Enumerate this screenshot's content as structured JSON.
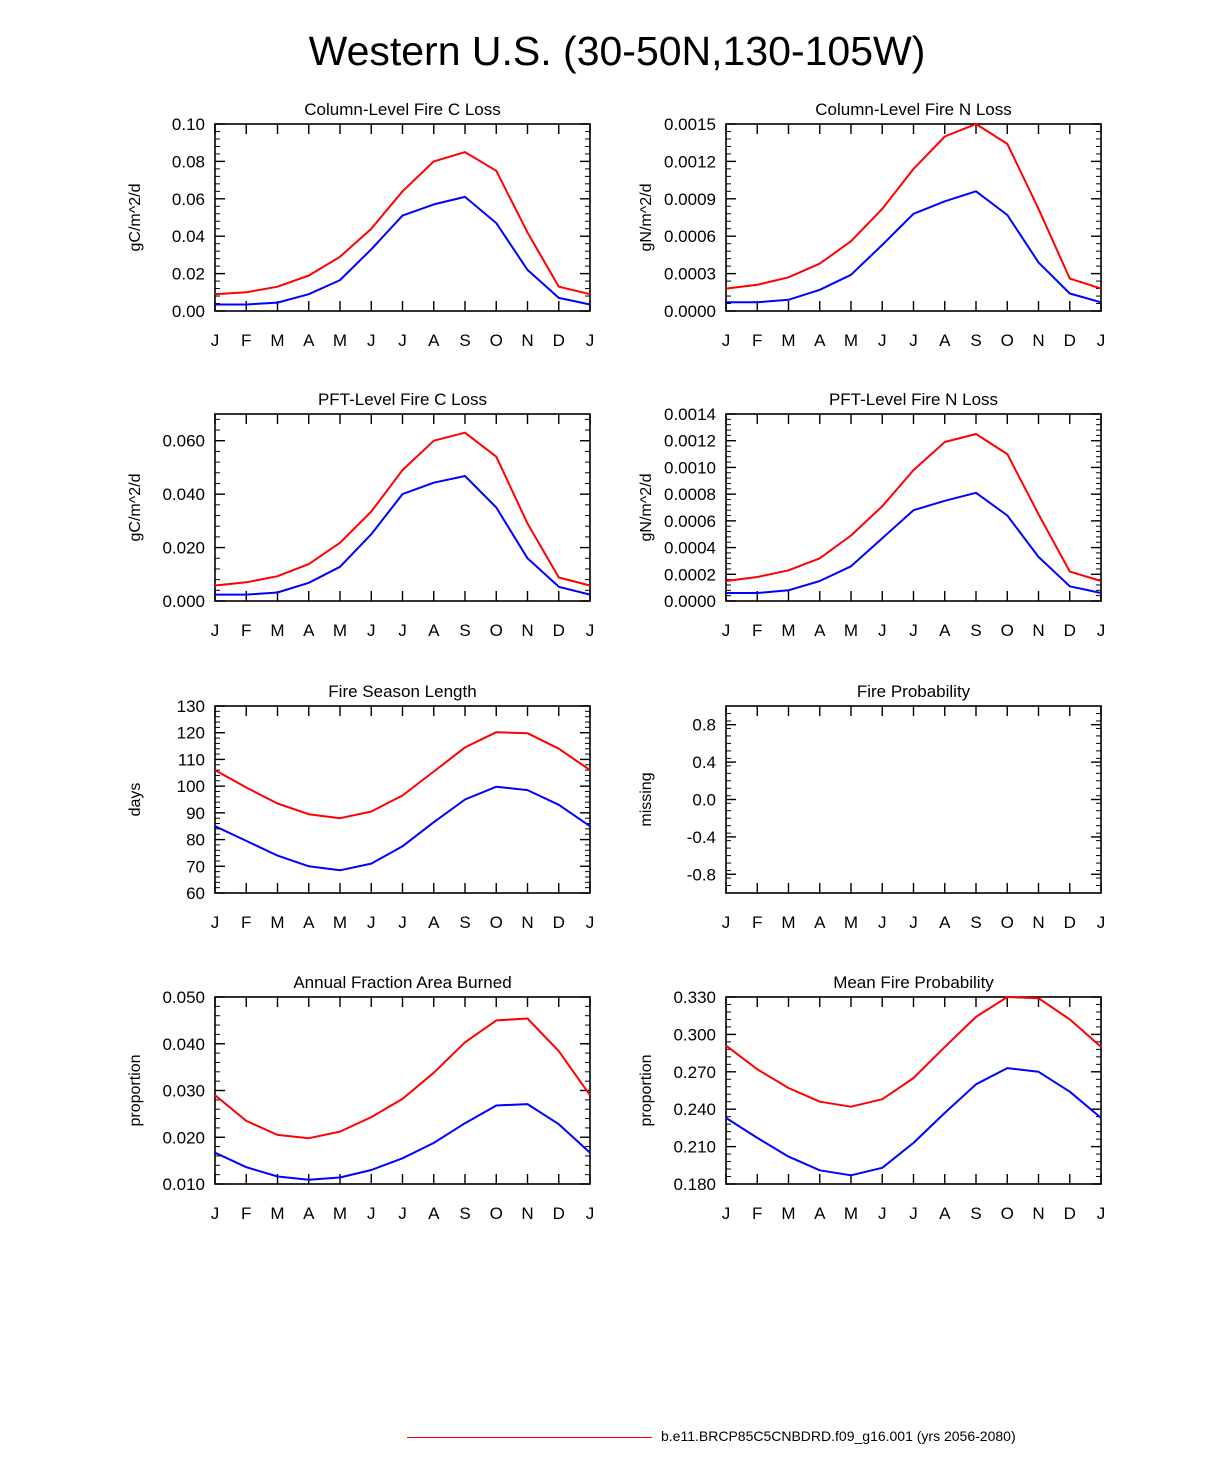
{
  "title": "Western U.S. (30-50N,130-105W)",
  "colors": {
    "series_a": "#ff0000",
    "series_b": "#0000ff",
    "axis": "#000000"
  },
  "legend": {
    "label": "b.e11.BRCP85C5CNBDRD.f09_g16.001 (yrs 2056-2080)",
    "color": "#ff0000"
  },
  "chart_data": [
    {
      "type": "line",
      "title": "Column-Level Fire C Loss",
      "ylabel": "gC/m^2/d",
      "categories": [
        "J",
        "F",
        "M",
        "A",
        "M",
        "J",
        "J",
        "A",
        "S",
        "O",
        "N",
        "D",
        "J"
      ],
      "ylim": [
        0,
        0.1
      ],
      "yticks": [
        "0.00",
        "0.02",
        "0.04",
        "0.06",
        "0.08",
        "0.10"
      ],
      "series": [
        {
          "name": "red",
          "color": "#ff0000",
          "values": [
            0.009,
            0.01,
            0.013,
            0.019,
            0.029,
            0.044,
            0.064,
            0.08,
            0.085,
            0.075,
            0.042,
            0.013,
            0.009
          ]
        },
        {
          "name": "blue",
          "color": "#0000ff",
          "values": [
            0.0035,
            0.0035,
            0.0045,
            0.009,
            0.0165,
            0.033,
            0.051,
            0.057,
            0.061,
            0.047,
            0.022,
            0.007,
            0.0035
          ]
        }
      ]
    },
    {
      "type": "line",
      "title": "Column-Level Fire N Loss",
      "ylabel": "gN/m^2/d",
      "categories": [
        "J",
        "F",
        "M",
        "A",
        "M",
        "J",
        "J",
        "A",
        "S",
        "O",
        "N",
        "D",
        "J"
      ],
      "ylim": [
        0,
        0.0015
      ],
      "yticks": [
        "0.0000",
        "0.0003",
        "0.0006",
        "0.0009",
        "0.0012",
        "0.0015"
      ],
      "series": [
        {
          "name": "red",
          "color": "#ff0000",
          "values": [
            0.00018,
            0.00021,
            0.00027,
            0.00038,
            0.00056,
            0.00082,
            0.00114,
            0.0014,
            0.0015,
            0.00134,
            0.00082,
            0.00026,
            0.00018
          ]
        },
        {
          "name": "blue",
          "color": "#0000ff",
          "values": [
            7e-05,
            7e-05,
            9e-05,
            0.00017,
            0.00029,
            0.00053,
            0.00078,
            0.00088,
            0.00096,
            0.00077,
            0.00039,
            0.00014,
            7e-05
          ]
        }
      ]
    },
    {
      "type": "line",
      "title": "PFT-Level Fire C Loss",
      "ylabel": "gC/m^2/d",
      "categories": [
        "J",
        "F",
        "M",
        "A",
        "M",
        "J",
        "J",
        "A",
        "S",
        "O",
        "N",
        "D",
        "J"
      ],
      "ylim": [
        0,
        0.07
      ],
      "yticks": [
        "0.000",
        "0.020",
        "0.040",
        "0.060"
      ],
      "ytick_values": [
        0,
        0.02,
        0.04,
        0.06
      ],
      "series": [
        {
          "name": "red",
          "color": "#ff0000",
          "values": [
            0.0058,
            0.007,
            0.0093,
            0.0138,
            0.0218,
            0.0335,
            0.049,
            0.06,
            0.063,
            0.054,
            0.029,
            0.0088,
            0.0058
          ]
        },
        {
          "name": "blue",
          "color": "#0000ff",
          "values": [
            0.0024,
            0.0024,
            0.0032,
            0.0068,
            0.0128,
            0.025,
            0.04,
            0.0443,
            0.0468,
            0.035,
            0.016,
            0.0053,
            0.0024
          ]
        }
      ]
    },
    {
      "type": "line",
      "title": "PFT-Level Fire N Loss",
      "ylabel": "gN/m^2/d",
      "categories": [
        "J",
        "F",
        "M",
        "A",
        "M",
        "J",
        "J",
        "A",
        "S",
        "O",
        "N",
        "D",
        "J"
      ],
      "ylim": [
        0,
        0.0014
      ],
      "yticks": [
        "0.0000",
        "0.0002",
        "0.0004",
        "0.0006",
        "0.0008",
        "0.0010",
        "0.0012",
        "0.0014"
      ],
      "series": [
        {
          "name": "red",
          "color": "#ff0000",
          "values": [
            0.00015,
            0.00018,
            0.00023,
            0.00032,
            0.00049,
            0.00071,
            0.00098,
            0.00119,
            0.00125,
            0.0011,
            0.00065,
            0.00022,
            0.00015
          ]
        },
        {
          "name": "blue",
          "color": "#0000ff",
          "values": [
            6e-05,
            6e-05,
            8e-05,
            0.00015,
            0.00026,
            0.00047,
            0.00068,
            0.00075,
            0.00081,
            0.00064,
            0.00033,
            0.00011,
            6e-05
          ]
        }
      ]
    },
    {
      "type": "line",
      "title": "Fire Season Length",
      "ylabel": "days",
      "categories": [
        "J",
        "F",
        "M",
        "A",
        "M",
        "J",
        "J",
        "A",
        "S",
        "O",
        "N",
        "D",
        "J"
      ],
      "ylim": [
        60,
        130
      ],
      "yticks": [
        "60",
        "70",
        "80",
        "90",
        "100",
        "110",
        "120",
        "130"
      ],
      "series": [
        {
          "name": "red",
          "color": "#ff0000",
          "values": [
            106,
            99.5,
            93.5,
            89.5,
            88,
            90.5,
            96.5,
            105.5,
            114.5,
            120.2,
            119.8,
            114,
            106
          ]
        },
        {
          "name": "blue",
          "color": "#0000ff",
          "values": [
            85,
            79.5,
            74,
            70,
            68.5,
            71,
            77.5,
            86.5,
            95,
            99.8,
            98.5,
            93,
            85
          ]
        }
      ]
    },
    {
      "type": "line",
      "title": "Fire Probability",
      "ylabel": "missing",
      "categories": [
        "J",
        "F",
        "M",
        "A",
        "M",
        "J",
        "J",
        "A",
        "S",
        "O",
        "N",
        "D",
        "J"
      ],
      "ylim": [
        -1,
        1
      ],
      "yticks": [
        "-0.8",
        "-0.4",
        "0.0",
        "0.4",
        "0.8"
      ],
      "ytick_values": [
        -0.8,
        -0.4,
        0,
        0.4,
        0.8
      ],
      "series": []
    },
    {
      "type": "line",
      "title": "Annual Fraction Area Burned",
      "ylabel": "proportion",
      "categories": [
        "J",
        "F",
        "M",
        "A",
        "M",
        "J",
        "J",
        "A",
        "S",
        "O",
        "N",
        "D",
        "J"
      ],
      "ylim": [
        0.01,
        0.05
      ],
      "yticks": [
        "0.010",
        "0.020",
        "0.030",
        "0.040",
        "0.050"
      ],
      "series": [
        {
          "name": "red",
          "color": "#ff0000",
          "values": [
            0.029,
            0.0235,
            0.0205,
            0.0198,
            0.0212,
            0.0243,
            0.0282,
            0.0338,
            0.0403,
            0.045,
            0.0454,
            0.0384,
            0.029
          ]
        },
        {
          "name": "blue",
          "color": "#0000ff",
          "values": [
            0.0167,
            0.0136,
            0.0116,
            0.0109,
            0.0114,
            0.013,
            0.0155,
            0.0188,
            0.023,
            0.0268,
            0.0271,
            0.0228,
            0.0167
          ]
        }
      ]
    },
    {
      "type": "line",
      "title": "Mean Fire Probability",
      "ylabel": "proportion",
      "categories": [
        "J",
        "F",
        "M",
        "A",
        "M",
        "J",
        "J",
        "A",
        "S",
        "O",
        "N",
        "D",
        "J"
      ],
      "ylim": [
        0.18,
        0.33
      ],
      "yticks": [
        "0.180",
        "0.210",
        "0.240",
        "0.270",
        "0.300",
        "0.330"
      ],
      "series": [
        {
          "name": "red",
          "color": "#ff0000",
          "values": [
            0.291,
            0.272,
            0.257,
            0.246,
            0.242,
            0.248,
            0.265,
            0.29,
            0.314,
            0.33,
            0.329,
            0.312,
            0.29
          ]
        },
        {
          "name": "blue",
          "color": "#0000ff",
          "values": [
            0.233,
            0.217,
            0.202,
            0.191,
            0.187,
            0.193,
            0.213,
            0.237,
            0.26,
            0.273,
            0.27,
            0.254,
            0.233
          ]
        }
      ]
    }
  ]
}
